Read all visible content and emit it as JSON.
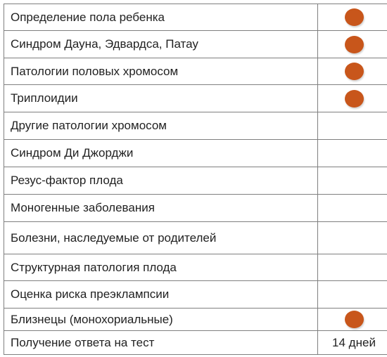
{
  "accent_color": "#c8561b",
  "rows": [
    {
      "label": "Определение пола ребенка",
      "mark": true
    },
    {
      "label": "Синдром Дауна, Эдвардса, Патау",
      "mark": true
    },
    {
      "label": "Патологии половых хромосом",
      "mark": true
    },
    {
      "label": "Триплоидии",
      "mark": true
    },
    {
      "label": "Другие патологии хромосом",
      "mark": false
    },
    {
      "label": "Синдром Ди Джорджи",
      "mark": false
    },
    {
      "label": "Резус-фактор плода",
      "mark": false
    },
    {
      "label": "Моногенные заболевания",
      "mark": false
    },
    {
      "label": "Болезни, наследуемые от родителей",
      "mark": false
    },
    {
      "label": "Структурная патология плода",
      "mark": false
    },
    {
      "label": "Оценка риска преэклампсии",
      "mark": false
    },
    {
      "label": "Близнецы (монохориальные)",
      "mark": true
    },
    {
      "label": "Получение ответа на тест",
      "value": "14 дней"
    }
  ]
}
